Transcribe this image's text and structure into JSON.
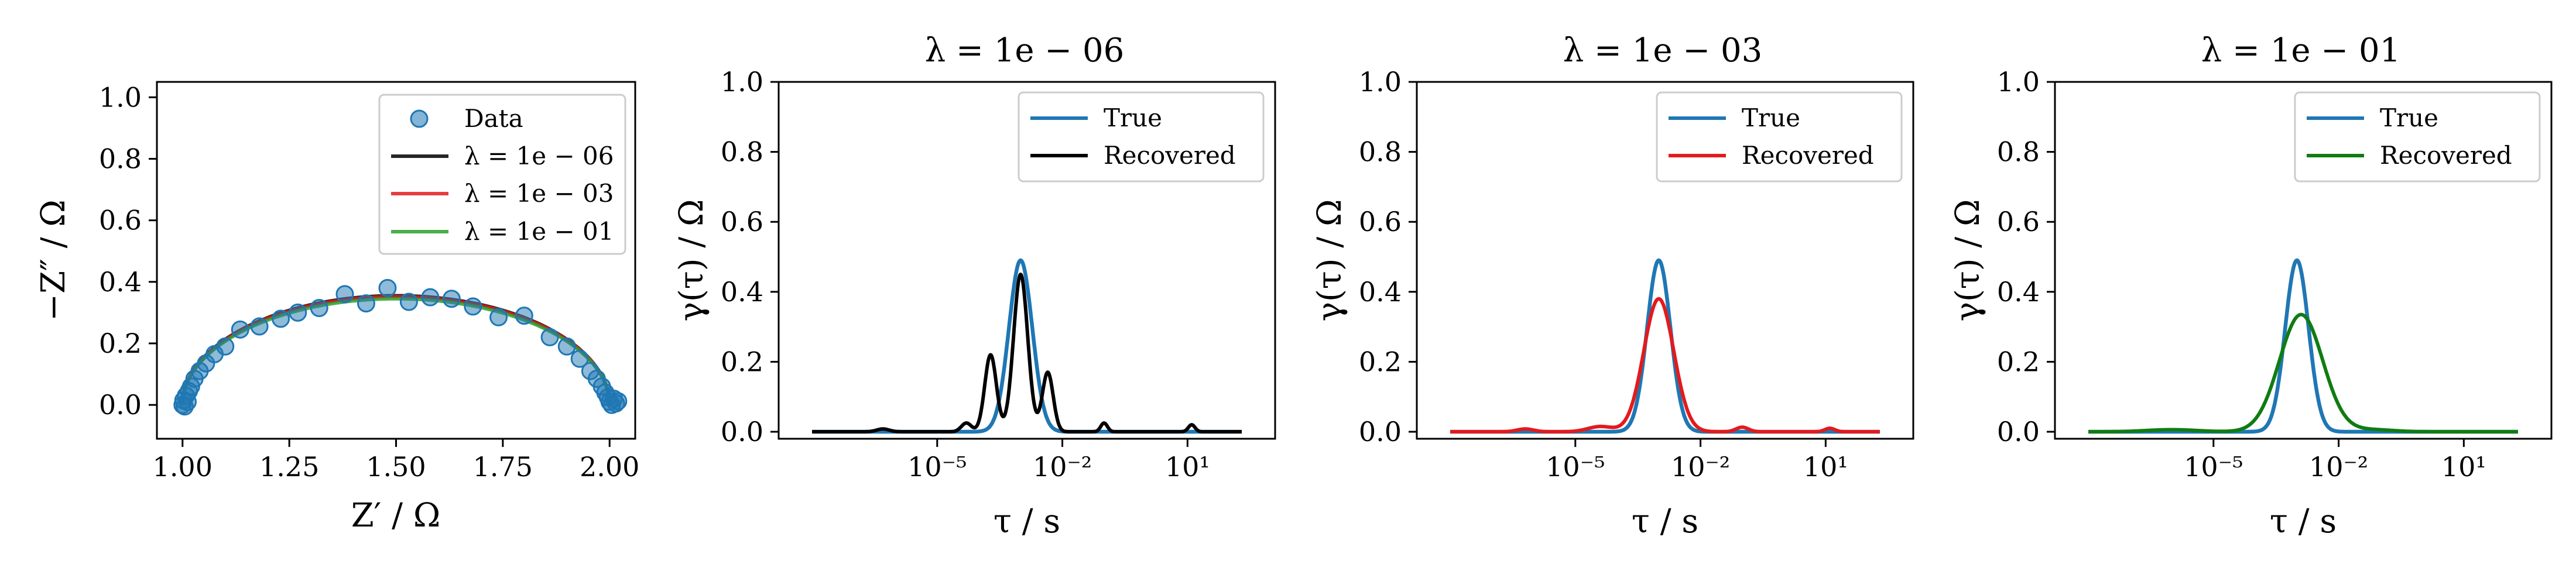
{
  "chart_data": [
    {
      "type": "scatter",
      "id": "nyquist",
      "title": "",
      "xlabel": "Z′ / Ω",
      "ylabel": "−Z″ / Ω",
      "xlim": [
        0.94,
        2.06
      ],
      "ylim": [
        -0.11,
        1.05
      ],
      "xticks": [
        1.0,
        1.25,
        1.5,
        1.75,
        2.0
      ],
      "xtick_labels": [
        "1.00",
        "1.25",
        "1.50",
        "1.75",
        "2.00"
      ],
      "yticks": [
        0.0,
        0.2,
        0.4,
        0.6,
        0.8,
        1.0
      ],
      "ytick_labels": [
        "0.0",
        "0.2",
        "0.4",
        "0.6",
        "0.8",
        "1.0"
      ],
      "grid": false,
      "legend_position": "upper right",
      "points": [
        {
          "x": 1.0,
          "y": 0.0
        },
        {
          "x": 1.002,
          "y": 0.015
        },
        {
          "x": 1.005,
          "y": -0.005
        },
        {
          "x": 1.008,
          "y": 0.03
        },
        {
          "x": 1.012,
          "y": 0.01
        },
        {
          "x": 1.015,
          "y": 0.045
        },
        {
          "x": 1.02,
          "y": 0.06
        },
        {
          "x": 1.028,
          "y": 0.085
        },
        {
          "x": 1.04,
          "y": 0.11
        },
        {
          "x": 1.055,
          "y": 0.135
        },
        {
          "x": 1.075,
          "y": 0.165
        },
        {
          "x": 1.1,
          "y": 0.19
        },
        {
          "x": 1.135,
          "y": 0.245
        },
        {
          "x": 1.18,
          "y": 0.255
        },
        {
          "x": 1.23,
          "y": 0.28
        },
        {
          "x": 1.27,
          "y": 0.3
        },
        {
          "x": 1.32,
          "y": 0.315
        },
        {
          "x": 1.38,
          "y": 0.36
        },
        {
          "x": 1.43,
          "y": 0.33
        },
        {
          "x": 1.48,
          "y": 0.38
        },
        {
          "x": 1.53,
          "y": 0.335
        },
        {
          "x": 1.58,
          "y": 0.35
        },
        {
          "x": 1.63,
          "y": 0.345
        },
        {
          "x": 1.68,
          "y": 0.32
        },
        {
          "x": 1.74,
          "y": 0.285
        },
        {
          "x": 1.8,
          "y": 0.29
        },
        {
          "x": 1.86,
          "y": 0.22
        },
        {
          "x": 1.9,
          "y": 0.19
        },
        {
          "x": 1.93,
          "y": 0.15
        },
        {
          "x": 1.955,
          "y": 0.11
        },
        {
          "x": 1.97,
          "y": 0.085
        },
        {
          "x": 1.982,
          "y": 0.06
        },
        {
          "x": 1.99,
          "y": 0.04
        },
        {
          "x": 1.996,
          "y": 0.025
        },
        {
          "x": 2.0,
          "y": 0.01
        },
        {
          "x": 2.005,
          "y": 0.0
        },
        {
          "x": 2.01,
          "y": 0.02
        },
        {
          "x": 2.015,
          "y": 0.005
        },
        {
          "x": 2.02,
          "y": 0.012
        }
      ],
      "series": [
        {
          "name": "Data",
          "kind": "scatter",
          "color": "#1f77b4"
        },
        {
          "name": "λ = 1e − 06",
          "kind": "line",
          "color": "#000000",
          "peak_y": 0.355
        },
        {
          "name": "λ = 1e − 03",
          "kind": "line",
          "color": "#e41a1c",
          "peak_y": 0.352
        },
        {
          "name": "λ = 1e − 01",
          "kind": "line",
          "color": "#2ca02c",
          "peak_y": 0.345
        }
      ]
    },
    {
      "type": "line",
      "id": "drt1",
      "title": "λ = 1e − 06",
      "xlabel": "τ / s",
      "ylabel": "γ(τ) / Ω",
      "xscale": "log",
      "xlim_log10": [
        -8.8,
        3.1
      ],
      "ylim": [
        -0.02,
        1.0
      ],
      "xticks_log10": [
        -5,
        -2,
        1
      ],
      "xtick_labels": [
        "10⁻⁵",
        "10⁻²",
        "10¹"
      ],
      "yticks": [
        0.0,
        0.2,
        0.4,
        0.6,
        0.8,
        1.0
      ],
      "ytick_labels": [
        "0.0",
        "0.2",
        "0.4",
        "0.6",
        "0.8",
        "1.0"
      ],
      "legend_position": "upper right",
      "series": [
        {
          "name": "True",
          "color": "#1f77b4",
          "components": [
            {
              "mu": -3.0,
              "sigma": 0.28,
              "amp": 0.49
            }
          ]
        },
        {
          "name": "Recovered",
          "color": "#000000",
          "components": [
            {
              "mu": -3.0,
              "sigma": 0.17,
              "amp": 0.45
            },
            {
              "mu": -3.72,
              "sigma": 0.14,
              "amp": 0.22
            },
            {
              "mu": -2.35,
              "sigma": 0.13,
              "amp": 0.17
            },
            {
              "mu": -4.3,
              "sigma": 0.12,
              "amp": 0.025
            },
            {
              "mu": -6.3,
              "sigma": 0.15,
              "amp": 0.008
            },
            {
              "mu": -1.0,
              "sigma": 0.08,
              "amp": 0.025
            },
            {
              "mu": 1.1,
              "sigma": 0.08,
              "amp": 0.02
            }
          ]
        }
      ]
    },
    {
      "type": "line",
      "id": "drt2",
      "title": "λ = 1e − 03",
      "xlabel": "τ / s",
      "ylabel": "γ(τ) / Ω",
      "xscale": "log",
      "xlim_log10": [
        -8.8,
        3.1
      ],
      "ylim": [
        -0.02,
        1.0
      ],
      "xticks_log10": [
        -5,
        -2,
        1
      ],
      "xtick_labels": [
        "10⁻⁵",
        "10⁻²",
        "10¹"
      ],
      "yticks": [
        0.0,
        0.2,
        0.4,
        0.6,
        0.8,
        1.0
      ],
      "ytick_labels": [
        "0.0",
        "0.2",
        "0.4",
        "0.6",
        "0.8",
        "1.0"
      ],
      "legend_position": "upper right",
      "series": [
        {
          "name": "True",
          "color": "#1f77b4",
          "components": [
            {
              "mu": -3.0,
              "sigma": 0.28,
              "amp": 0.49
            }
          ]
        },
        {
          "name": "Recovered",
          "color": "#e41a1c",
          "components": [
            {
              "mu": -3.0,
              "sigma": 0.36,
              "amp": 0.38
            },
            {
              "mu": -4.4,
              "sigma": 0.3,
              "amp": 0.015
            },
            {
              "mu": -6.2,
              "sigma": 0.2,
              "amp": 0.008
            },
            {
              "mu": -1.0,
              "sigma": 0.15,
              "amp": 0.013
            },
            {
              "mu": 1.1,
              "sigma": 0.12,
              "amp": 0.01
            }
          ]
        }
      ]
    },
    {
      "type": "line",
      "id": "drt3",
      "title": "λ = 1e − 01",
      "xlabel": "τ / s",
      "ylabel": "γ(τ) / Ω",
      "xscale": "log",
      "xlim_log10": [
        -8.8,
        3.1
      ],
      "ylim": [
        -0.02,
        1.0
      ],
      "xticks_log10": [
        -5,
        -2,
        1
      ],
      "xtick_labels": [
        "10⁻⁵",
        "10⁻²",
        "10¹"
      ],
      "yticks": [
        0.0,
        0.2,
        0.4,
        0.6,
        0.8,
        1.0
      ],
      "ytick_labels": [
        "0.0",
        "0.2",
        "0.4",
        "0.6",
        "0.8",
        "1.0"
      ],
      "legend_position": "upper right",
      "series": [
        {
          "name": "True",
          "color": "#1f77b4",
          "components": [
            {
              "mu": -3.0,
              "sigma": 0.28,
              "amp": 0.49
            }
          ]
        },
        {
          "name": "Recovered",
          "color": "#107c10",
          "components": [
            {
              "mu": -2.9,
              "sigma": 0.52,
              "amp": 0.335
            },
            {
              "mu": -6.0,
              "sigma": 0.6,
              "amp": 0.006
            },
            {
              "mu": -1.2,
              "sigma": 0.5,
              "amp": 0.006
            }
          ]
        }
      ]
    }
  ]
}
